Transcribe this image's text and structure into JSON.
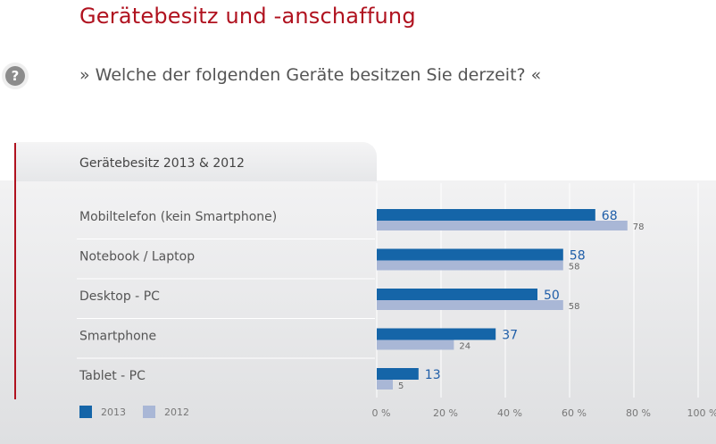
{
  "header": {
    "title": "Gerätebesitz und -anschaffung",
    "question": "» Welche der folgenden Geräte besitzen Sie derzeit? «",
    "help_icon": "question-mark-icon",
    "help_glyph": "?"
  },
  "colors": {
    "accent": "#b0121f",
    "series_2013": "#1565a8",
    "series_2012": "#a9b7d6",
    "value_2013_text": "#1f5ea8",
    "value_2012_text": "#666666"
  },
  "chart_data": {
    "type": "bar",
    "orientation": "horizontal",
    "title": "Gerätebesitz  2013 & 2012",
    "categories": [
      "Mobiltelefon (kein Smartphone)",
      "Notebook / Laptop",
      "Desktop - PC",
      "Smartphone",
      "Tablet - PC"
    ],
    "series": [
      {
        "name": "2013",
        "values": [
          68,
          58,
          50,
          37,
          13
        ]
      },
      {
        "name": "2012",
        "values": [
          78,
          58,
          58,
          24,
          5
        ]
      }
    ],
    "xlim": [
      0,
      100
    ],
    "xticks": [
      "0 %",
      "20 %",
      "40 %",
      "60 %",
      "80 %",
      "100 %"
    ],
    "grid": true,
    "legend_position": "bottom-left"
  }
}
